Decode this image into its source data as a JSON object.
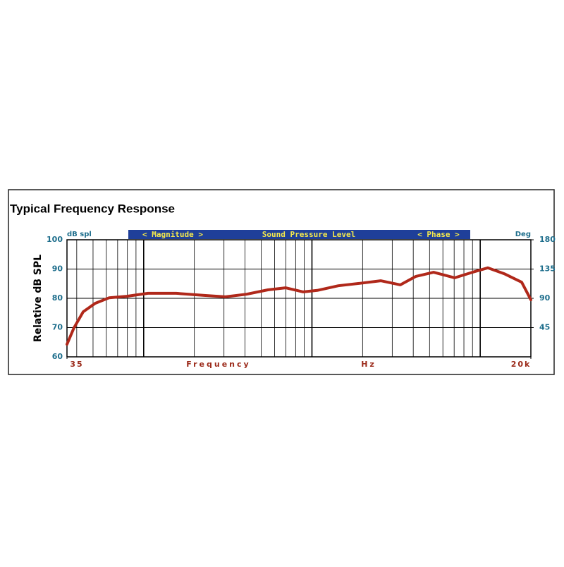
{
  "chart_data": {
    "type": "line",
    "title": "Typical Frequency Response",
    "banner": [
      "< Magnitude >",
      "Sound Pressure Level",
      "< Phase >"
    ],
    "ylabel": "Relative dB SPL",
    "yunit": "dB spl",
    "y2unit": "Deg",
    "xlabel": "Frequency",
    "xunit": "Hz",
    "x": [
      35,
      38.5,
      43.7,
      51.5,
      62.4,
      79.4,
      106,
      156,
      229,
      306,
      409,
      547,
      697,
      887,
      1075,
      1435,
      1919,
      2562,
      3354,
      4145,
      5284,
      7055,
      8981,
      11090,
      13870,
      17650,
      20000
    ],
    "values": [
      64.3,
      69.9,
      75.4,
      78.3,
      80.2,
      80.7,
      81.7,
      81.7,
      81.0,
      80.5,
      81.4,
      82.9,
      83.6,
      82.2,
      82.7,
      84.3,
      85.1,
      86.0,
      84.6,
      87.5,
      88.9,
      87.0,
      88.9,
      90.4,
      88.4,
      85.5,
      79.5
    ],
    "color": "#b0281a",
    "xlim": [
      35,
      20000
    ],
    "xlog": true,
    "xticks": [
      {
        "value": 35,
        "label": "35"
      },
      {
        "value": 20000,
        "label": "20k"
      }
    ],
    "xgrid": [
      40,
      50,
      60,
      70,
      80,
      90,
      100,
      200,
      300,
      400,
      500,
      600,
      700,
      800,
      900,
      1000,
      2000,
      3000,
      4000,
      5000,
      6000,
      7000,
      8000,
      9000,
      10000
    ],
    "ylim": [
      60,
      100
    ],
    "yticks": [
      60,
      70,
      80,
      90,
      100
    ],
    "y2lim": [
      0,
      180
    ],
    "y2ticks": [
      45,
      90,
      135,
      180
    ],
    "grid": true
  }
}
